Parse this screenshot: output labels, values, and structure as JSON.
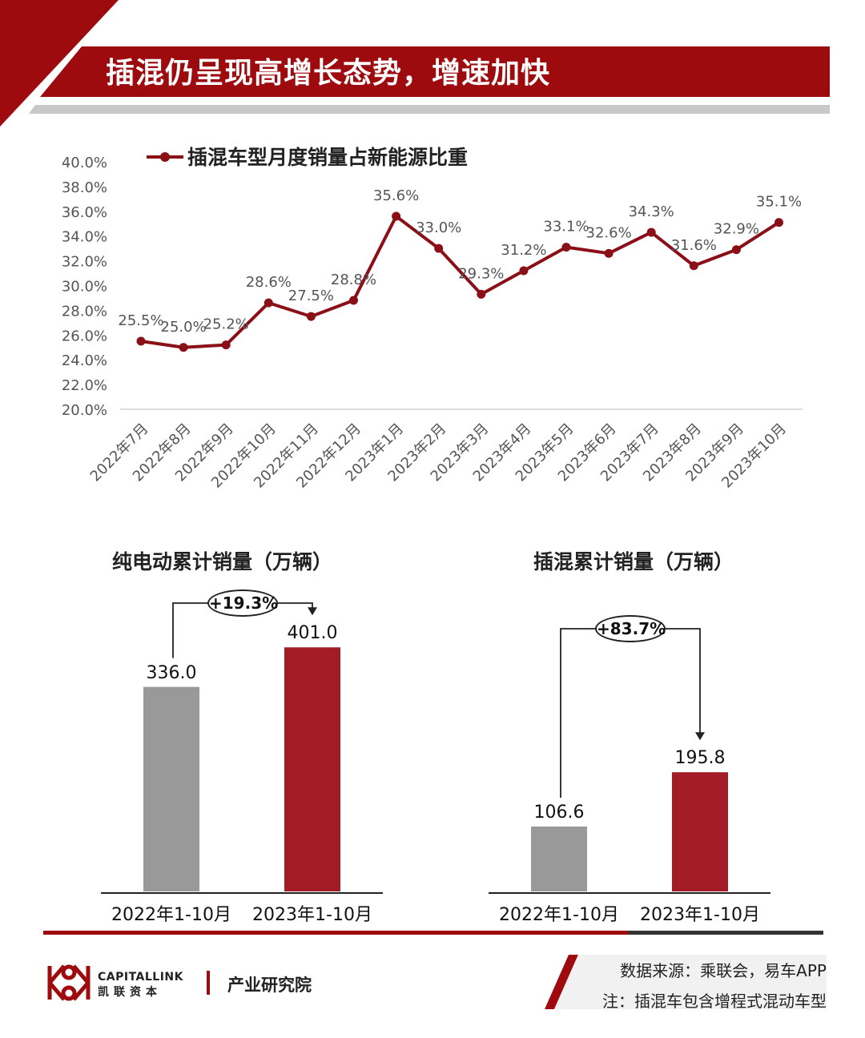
{
  "page": {
    "title": "插混仍呈现高增长态势，增速加快",
    "colors": {
      "accent": "#9E0B0F",
      "bar_red": "#A31B24",
      "bar_gray": "#999999",
      "line": "#8B0F16"
    }
  },
  "chart_data": [
    {
      "type": "line",
      "legend": "插混车型月度销量占新能源比重",
      "legend_position": "top",
      "categories": [
        "2022年7月",
        "2022年8月",
        "2022年9月",
        "2022年10月",
        "2022年11月",
        "2022年12月",
        "2023年1月",
        "2023年2月",
        "2023年3月",
        "2023年4月",
        "2023年5月",
        "2023年6月",
        "2023年7月",
        "2023年8月",
        "2023年9月",
        "2023年10月"
      ],
      "values": [
        25.5,
        25.0,
        25.2,
        28.6,
        27.5,
        28.8,
        35.6,
        33.0,
        29.3,
        31.2,
        33.1,
        32.6,
        34.3,
        31.6,
        32.9,
        35.1
      ],
      "data_labels": [
        "25.5%",
        "25.0%",
        "25.2%",
        "28.6%",
        "27.5%",
        "28.8%",
        "35.6%",
        "33.0%",
        "29.3%",
        "31.2%",
        "33.1%",
        "32.6%",
        "34.3%",
        "31.6%",
        "32.9%",
        "35.1%"
      ],
      "ylim": [
        20,
        40
      ],
      "yticks": [
        "20.0%",
        "22.0%",
        "24.0%",
        "26.0%",
        "28.0%",
        "30.0%",
        "32.0%",
        "34.0%",
        "36.0%",
        "38.0%",
        "40.0%"
      ],
      "grid": false
    },
    {
      "type": "bar",
      "title": "纯电动累计销量（万辆）",
      "categories": [
        "2022年1-10月",
        "2023年1-10月"
      ],
      "values": [
        336.0,
        401.0
      ],
      "data_labels": [
        "336.0",
        "401.0"
      ],
      "growth_label": "+19.3%"
    },
    {
      "type": "bar",
      "title": "插混累计销量（万辆）",
      "categories": [
        "2022年1-10月",
        "2023年1-10月"
      ],
      "values": [
        106.6,
        195.8
      ],
      "data_labels": [
        "106.6",
        "195.8"
      ],
      "growth_label": "+83.7%"
    }
  ],
  "footer": {
    "brand_en": "CAPITALLINK",
    "brand_cn": "凯联资本",
    "department": "产业研究院",
    "source": "数据来源：乘联会，易车APP",
    "note": "注：插混车包含增程式混动车型"
  }
}
